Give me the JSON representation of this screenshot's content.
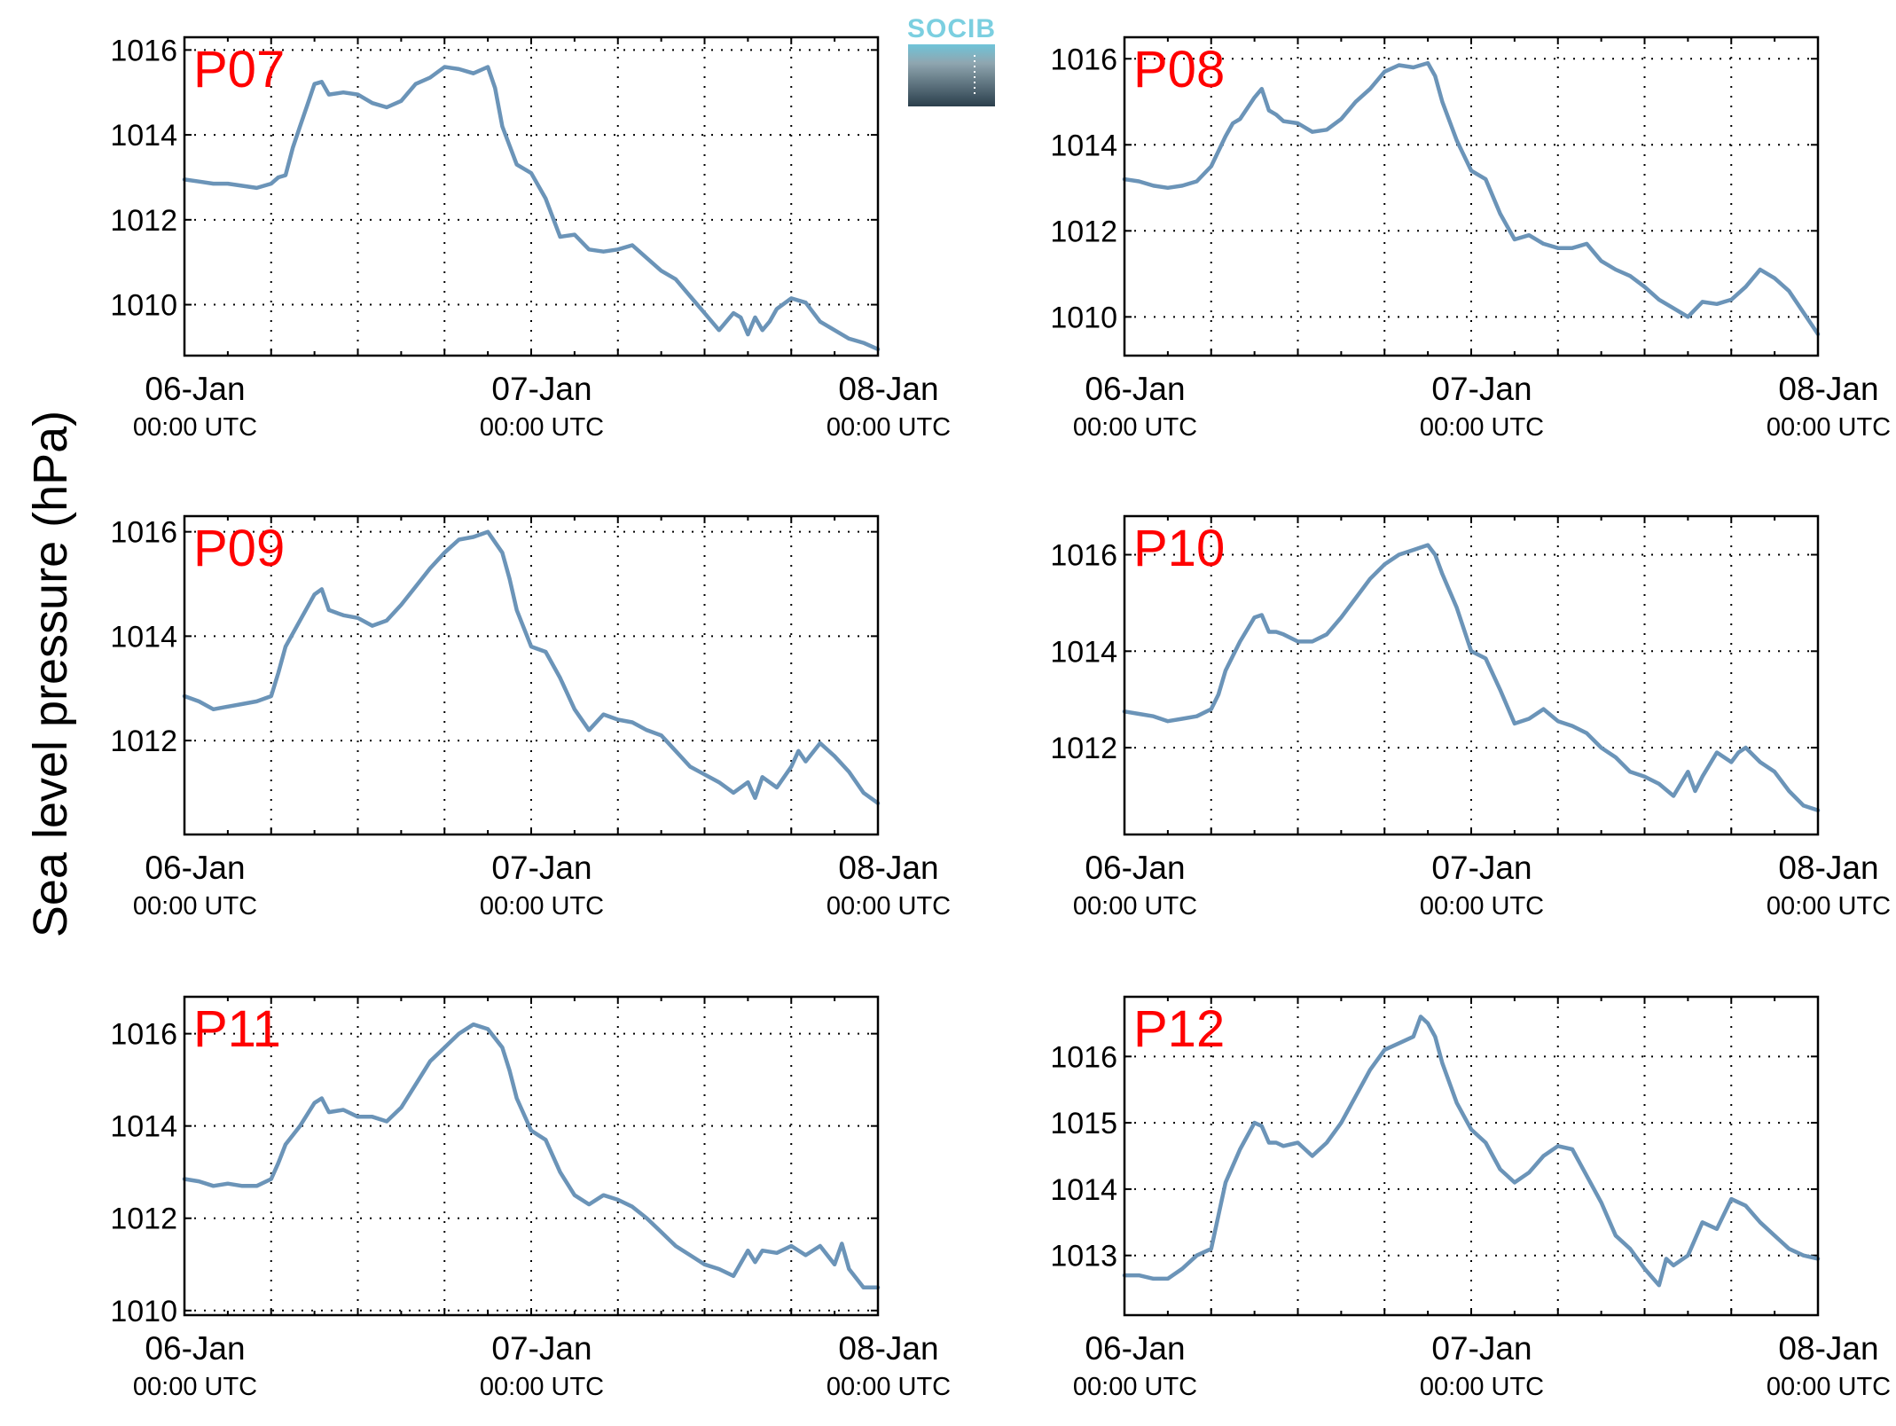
{
  "figure": {
    "ylabel": "Sea level pressure (hPa)",
    "logo": {
      "text": "SOCIB",
      "icon": "socib-logo"
    },
    "line_color": "#6b94b8",
    "label_color": "#ff0000"
  },
  "chart_data": [
    {
      "type": "line",
      "station": "P07",
      "xlabel": "",
      "ylabel": "Sea level pressure (hPa)",
      "x_ticks": [
        {
          "date": "06-Jan",
          "time": "00:00 UTC"
        },
        {
          "date": "07-Jan",
          "time": "00:00 UTC"
        },
        {
          "date": "08-Jan",
          "time": "00:00 UTC"
        }
      ],
      "x_unit": "hours since 06-Jan 00:00 UTC",
      "xlim": [
        0,
        48
      ],
      "ylim": [
        1008.8,
        1016.3
      ],
      "yticks": [
        1010,
        1012,
        1014,
        1016
      ],
      "grid": true,
      "series": [
        {
          "x": [
            0,
            1,
            2,
            3,
            4,
            5,
            6,
            6.5,
            7,
            7.5,
            8,
            8.5,
            9,
            9.5,
            10,
            11,
            12,
            13,
            14,
            15,
            16,
            17,
            18,
            19,
            20,
            21,
            21.5,
            22,
            23,
            24,
            25,
            26,
            27,
            28,
            29,
            30,
            31,
            32,
            33,
            34,
            35,
            36,
            37,
            38,
            38.5,
            39,
            39.5,
            40,
            40.5,
            41,
            42,
            43,
            44,
            45,
            46,
            47,
            48
          ],
          "y": [
            1012.95,
            1012.9,
            1012.85,
            1012.85,
            1012.8,
            1012.75,
            1012.85,
            1013.0,
            1013.05,
            1013.7,
            1014.2,
            1014.7,
            1015.2,
            1015.25,
            1014.95,
            1015.0,
            1014.95,
            1014.75,
            1014.65,
            1014.8,
            1015.2,
            1015.35,
            1015.6,
            1015.55,
            1015.45,
            1015.6,
            1015.1,
            1014.2,
            1013.3,
            1013.1,
            1012.5,
            1011.6,
            1011.65,
            1011.3,
            1011.25,
            1011.3,
            1011.4,
            1011.1,
            1010.8,
            1010.6,
            1010.2,
            1009.8,
            1009.4,
            1009.8,
            1009.7,
            1009.3,
            1009.7,
            1009.4,
            1009.6,
            1009.9,
            1010.15,
            1010.05,
            1009.6,
            1009.4,
            1009.2,
            1009.1,
            1008.95
          ]
        }
      ]
    },
    {
      "type": "line",
      "station": "P08",
      "xlabel": "",
      "ylabel": "Sea level pressure (hPa)",
      "x_ticks": [
        {
          "date": "06-Jan",
          "time": "00:00 UTC"
        },
        {
          "date": "07-Jan",
          "time": "00:00 UTC"
        },
        {
          "date": "08-Jan",
          "time": "00:00 UTC"
        }
      ],
      "x_unit": "hours since 06-Jan 00:00 UTC",
      "xlim": [
        0,
        48
      ],
      "ylim": [
        1009.1,
        1016.5
      ],
      "yticks": [
        1010,
        1012,
        1014,
        1016
      ],
      "grid": true,
      "series": [
        {
          "x": [
            0,
            1,
            2,
            3,
            4,
            5,
            6,
            7,
            7.5,
            8,
            9,
            9.5,
            10,
            10.5,
            11,
            12,
            13,
            14,
            15,
            16,
            17,
            18,
            19,
            20,
            21,
            21.5,
            22,
            23,
            24,
            25,
            26,
            27,
            28,
            29,
            30,
            31,
            32,
            33,
            34,
            35,
            36,
            37,
            38,
            39,
            40,
            41,
            42,
            42.5,
            43,
            44,
            45,
            46,
            47,
            48
          ],
          "y": [
            1013.2,
            1013.15,
            1013.05,
            1013.0,
            1013.05,
            1013.15,
            1013.5,
            1014.2,
            1014.5,
            1014.6,
            1015.1,
            1015.3,
            1014.8,
            1014.7,
            1014.55,
            1014.5,
            1014.3,
            1014.35,
            1014.6,
            1015.0,
            1015.3,
            1015.7,
            1015.85,
            1015.8,
            1015.9,
            1015.6,
            1015.0,
            1014.1,
            1013.4,
            1013.2,
            1012.4,
            1011.8,
            1011.9,
            1011.7,
            1011.6,
            1011.6,
            1011.7,
            1011.3,
            1011.1,
            1010.95,
            1010.7,
            1010.4,
            1010.2,
            1010.0,
            1010.35,
            1010.3,
            1010.4,
            1010.55,
            1010.7,
            1011.1,
            1010.9,
            1010.6,
            1010.1,
            1009.6
          ]
        }
      ]
    },
    {
      "type": "line",
      "station": "P09",
      "xlabel": "",
      "ylabel": "Sea level pressure (hPa)",
      "x_ticks": [
        {
          "date": "06-Jan",
          "time": "00:00 UTC"
        },
        {
          "date": "07-Jan",
          "time": "00:00 UTC"
        },
        {
          "date": "08-Jan",
          "time": "00:00 UTC"
        }
      ],
      "x_unit": "hours since 06-Jan 00:00 UTC",
      "xlim": [
        0,
        48
      ],
      "ylim": [
        1010.2,
        1016.3
      ],
      "yticks": [
        1012,
        1014,
        1016
      ],
      "grid": true,
      "series": [
        {
          "x": [
            0,
            1,
            2,
            3,
            4,
            5,
            6,
            6.5,
            7,
            8,
            9,
            9.5,
            10,
            10.5,
            11,
            12,
            13,
            14,
            15,
            16,
            17,
            18,
            19,
            20,
            21,
            22,
            22.5,
            23,
            24,
            25,
            26,
            27,
            28,
            29,
            30,
            31,
            32,
            33,
            34,
            35,
            36,
            37,
            38,
            39,
            39.5,
            40,
            41,
            42,
            42.5,
            43,
            44,
            45,
            46,
            47,
            48
          ],
          "y": [
            1012.85,
            1012.75,
            1012.6,
            1012.65,
            1012.7,
            1012.75,
            1012.85,
            1013.3,
            1013.8,
            1014.3,
            1014.8,
            1014.9,
            1014.5,
            1014.45,
            1014.4,
            1014.35,
            1014.2,
            1014.3,
            1014.6,
            1014.95,
            1015.3,
            1015.6,
            1015.85,
            1015.9,
            1016.0,
            1015.6,
            1015.1,
            1014.5,
            1013.8,
            1013.7,
            1013.2,
            1012.6,
            1012.2,
            1012.5,
            1012.4,
            1012.35,
            1012.2,
            1012.1,
            1011.8,
            1011.5,
            1011.35,
            1011.2,
            1011.0,
            1011.2,
            1010.9,
            1011.3,
            1011.1,
            1011.5,
            1011.8,
            1011.6,
            1011.95,
            1011.7,
            1011.4,
            1011.0,
            1010.8
          ]
        }
      ]
    },
    {
      "type": "line",
      "station": "P10",
      "xlabel": "",
      "ylabel": "Sea level pressure (hPa)",
      "x_ticks": [
        {
          "date": "06-Jan",
          "time": "00:00 UTC"
        },
        {
          "date": "07-Jan",
          "time": "00:00 UTC"
        },
        {
          "date": "08-Jan",
          "time": "00:00 UTC"
        }
      ],
      "x_unit": "hours since 06-Jan 00:00 UTC",
      "xlim": [
        0,
        48
      ],
      "ylim": [
        1010.2,
        1016.8
      ],
      "yticks": [
        1012,
        1014,
        1016
      ],
      "grid": true,
      "series": [
        {
          "x": [
            0,
            1,
            2,
            3,
            4,
            5,
            6,
            6.5,
            7,
            8,
            9,
            9.5,
            10,
            10.5,
            11,
            12,
            13,
            14,
            15,
            16,
            17,
            18,
            19,
            20,
            21,
            21.5,
            22,
            23,
            24,
            25,
            26,
            27,
            28,
            29,
            30,
            31,
            32,
            33,
            34,
            35,
            36,
            37,
            38,
            39,
            39.5,
            40,
            41,
            42,
            42.5,
            43,
            44,
            45,
            46,
            47,
            48
          ],
          "y": [
            1012.75,
            1012.7,
            1012.65,
            1012.55,
            1012.6,
            1012.65,
            1012.8,
            1013.1,
            1013.6,
            1014.2,
            1014.7,
            1014.75,
            1014.4,
            1014.4,
            1014.35,
            1014.2,
            1014.2,
            1014.35,
            1014.7,
            1015.1,
            1015.5,
            1015.8,
            1016.0,
            1016.1,
            1016.2,
            1016.0,
            1015.6,
            1014.9,
            1014.0,
            1013.85,
            1013.2,
            1012.5,
            1012.6,
            1012.8,
            1012.55,
            1012.45,
            1012.3,
            1012.0,
            1011.8,
            1011.5,
            1011.4,
            1011.25,
            1011.0,
            1011.5,
            1011.1,
            1011.4,
            1011.9,
            1011.7,
            1011.9,
            1012.0,
            1011.7,
            1011.5,
            1011.1,
            1010.8,
            1010.7
          ]
        }
      ]
    },
    {
      "type": "line",
      "station": "P11",
      "xlabel": "",
      "ylabel": "Sea level pressure (hPa)",
      "x_ticks": [
        {
          "date": "06-Jan",
          "time": "00:00 UTC"
        },
        {
          "date": "07-Jan",
          "time": "00:00 UTC"
        },
        {
          "date": "08-Jan",
          "time": "00:00 UTC"
        }
      ],
      "x_unit": "hours since 06-Jan 00:00 UTC",
      "xlim": [
        0,
        48
      ],
      "ylim": [
        1009.9,
        1016.8
      ],
      "yticks": [
        1010,
        1012,
        1014,
        1016
      ],
      "grid": true,
      "series": [
        {
          "x": [
            0,
            1,
            2,
            3,
            4,
            5,
            6,
            6.5,
            7,
            8,
            9,
            9.5,
            10,
            11,
            12,
            13,
            14,
            15,
            16,
            17,
            18,
            19,
            20,
            21,
            22,
            22.5,
            23,
            24,
            25,
            26,
            27,
            28,
            29,
            30,
            31,
            32,
            33,
            34,
            35,
            36,
            37,
            38,
            39,
            39.5,
            40,
            41,
            42,
            43,
            44,
            45,
            45.5,
            46,
            47,
            48
          ],
          "y": [
            1012.85,
            1012.8,
            1012.7,
            1012.75,
            1012.7,
            1012.7,
            1012.85,
            1013.2,
            1013.6,
            1014.0,
            1014.5,
            1014.6,
            1014.3,
            1014.35,
            1014.2,
            1014.2,
            1014.1,
            1014.4,
            1014.9,
            1015.4,
            1015.7,
            1016.0,
            1016.2,
            1016.1,
            1015.7,
            1015.2,
            1014.6,
            1013.9,
            1013.7,
            1013.0,
            1012.5,
            1012.3,
            1012.5,
            1012.4,
            1012.25,
            1012.0,
            1011.7,
            1011.4,
            1011.2,
            1011.0,
            1010.9,
            1010.75,
            1011.3,
            1011.05,
            1011.3,
            1011.25,
            1011.4,
            1011.2,
            1011.4,
            1011.0,
            1011.45,
            1010.9,
            1010.5,
            1010.5
          ]
        }
      ]
    },
    {
      "type": "line",
      "station": "P12",
      "xlabel": "",
      "ylabel": "Sea level pressure (hPa)",
      "x_ticks": [
        {
          "date": "06-Jan",
          "time": "00:00 UTC"
        },
        {
          "date": "07-Jan",
          "time": "00:00 UTC"
        },
        {
          "date": "08-Jan",
          "time": "00:00 UTC"
        }
      ],
      "x_unit": "hours since 06-Jan 00:00 UTC",
      "xlim": [
        0,
        48
      ],
      "ylim": [
        1012.1,
        1016.9
      ],
      "yticks": [
        1013,
        1014,
        1015,
        1016
      ],
      "grid": true,
      "series": [
        {
          "x": [
            0,
            1,
            2,
            3,
            4,
            5,
            6,
            6.5,
            7,
            8,
            9,
            9.5,
            10,
            10.5,
            11,
            12,
            13,
            14,
            15,
            16,
            17,
            18,
            19,
            20,
            20.5,
            21,
            21.5,
            22,
            23,
            24,
            25,
            26,
            27,
            28,
            29,
            30,
            31,
            32,
            33,
            34,
            35,
            36,
            37,
            37.5,
            38,
            39,
            40,
            41,
            42,
            43,
            44,
            45,
            46,
            47,
            48
          ],
          "y": [
            1012.7,
            1012.7,
            1012.65,
            1012.65,
            1012.8,
            1013.0,
            1013.1,
            1013.6,
            1014.1,
            1014.6,
            1015.0,
            1014.95,
            1014.7,
            1014.7,
            1014.65,
            1014.7,
            1014.5,
            1014.7,
            1015.0,
            1015.4,
            1015.8,
            1016.1,
            1016.2,
            1016.3,
            1016.6,
            1016.5,
            1016.3,
            1015.9,
            1015.3,
            1014.9,
            1014.7,
            1014.3,
            1014.1,
            1014.25,
            1014.5,
            1014.65,
            1014.6,
            1014.2,
            1013.8,
            1013.3,
            1013.1,
            1012.8,
            1012.55,
            1012.95,
            1012.85,
            1013.0,
            1013.5,
            1013.4,
            1013.85,
            1013.75,
            1013.5,
            1013.3,
            1013.1,
            1013.0,
            1012.95
          ]
        }
      ]
    }
  ]
}
